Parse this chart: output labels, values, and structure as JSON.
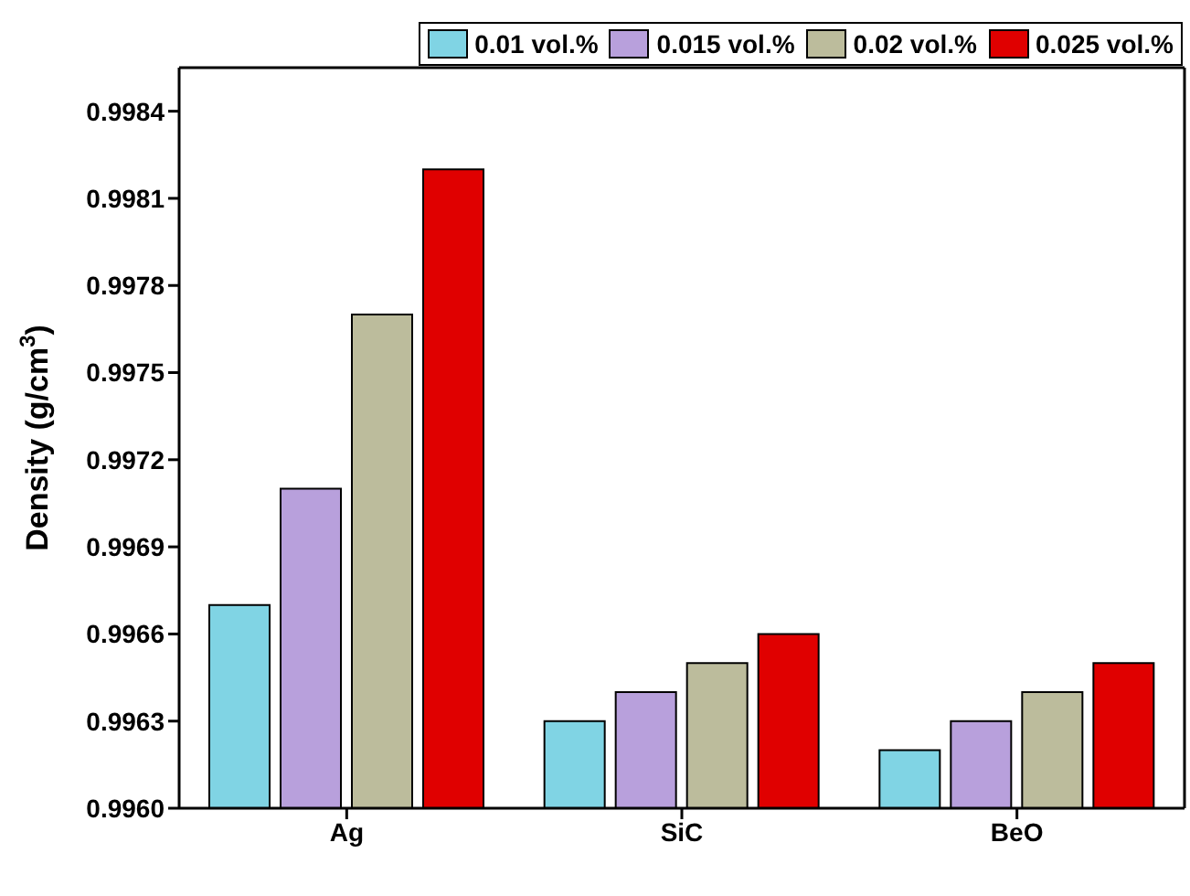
{
  "chart_data": {
    "type": "bar",
    "ylabel": "Density (g/cm$^{3}$)",
    "categories": [
      "Ag",
      "SiC",
      "BeO"
    ],
    "series": [
      {
        "name": "0.01 vol.%",
        "color": "#80d4e4",
        "values": [
          0.9967,
          0.9963,
          0.9962
        ]
      },
      {
        "name": "0.015 vol.%",
        "color": "#b8a0dc",
        "values": [
          0.9971,
          0.9964,
          0.9963
        ]
      },
      {
        "name": "0.02 vol.%",
        "color": "#bcbc9c",
        "values": [
          0.9977,
          0.9965,
          0.9964
        ]
      },
      {
        "name": "0.025 vol.%",
        "color": "#e00000",
        "values": [
          0.9982,
          0.9966,
          0.9965
        ]
      }
    ],
    "ylim": [
      0.996,
      0.99855
    ],
    "yticks": [
      {
        "value": 0.996,
        "label": "0.9960"
      },
      0.9963,
      0.9966,
      0.9969,
      0.9972,
      0.9975,
      0.9978,
      0.9981,
      0.9984
    ],
    "legend": "top"
  }
}
